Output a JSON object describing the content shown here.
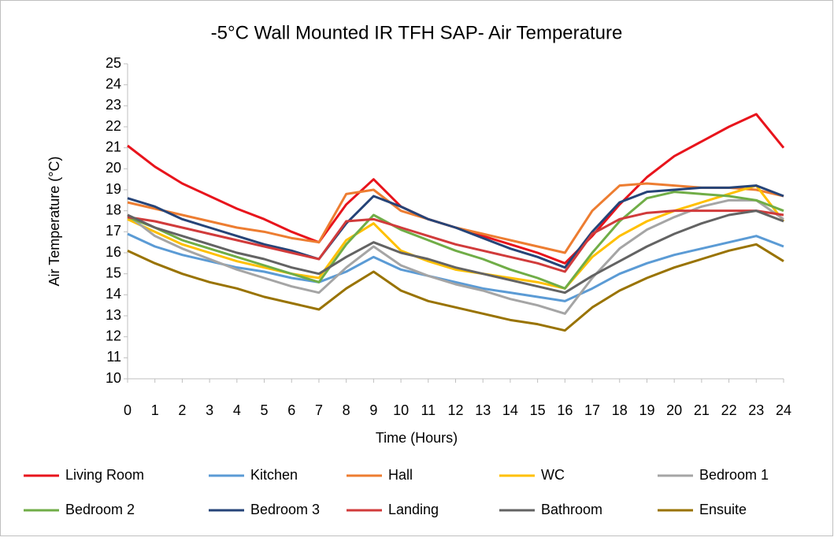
{
  "chart_data": {
    "type": "line",
    "title": "-5°C Wall Mounted IR TFH SAP- Air Temperature",
    "x_label": "Time (Hours)",
    "y_label": "Air Temperature (°C)",
    "x": [
      0,
      1,
      2,
      3,
      4,
      5,
      6,
      7,
      8,
      9,
      10,
      11,
      12,
      13,
      14,
      15,
      16,
      17,
      18,
      19,
      20,
      21,
      22,
      23,
      24
    ],
    "xlim": [
      0,
      24
    ],
    "xticks": [
      0,
      1,
      2,
      3,
      4,
      5,
      6,
      7,
      8,
      9,
      10,
      11,
      12,
      13,
      14,
      15,
      16,
      17,
      18,
      19,
      20,
      21,
      22,
      23,
      24
    ],
    "ylim": [
      10,
      25
    ],
    "yticks": [
      10,
      11,
      12,
      13,
      14,
      15,
      16,
      17,
      18,
      19,
      20,
      21,
      22,
      23,
      24,
      25
    ],
    "grid": false,
    "legend": "bottom",
    "series": [
      {
        "name": "Living Room",
        "color": "#e8141c",
        "values": [
          21.1,
          20.1,
          19.3,
          18.7,
          18.1,
          17.6,
          17.0,
          16.5,
          18.3,
          19.5,
          18.2,
          17.6,
          17.2,
          16.8,
          16.4,
          16.0,
          15.5,
          16.8,
          18.3,
          19.6,
          20.6,
          21.3,
          22.0,
          22.6,
          21.0
        ]
      },
      {
        "name": "Kitchen",
        "color": "#5b9bd5",
        "values": [
          16.9,
          16.3,
          15.9,
          15.6,
          15.3,
          15.1,
          14.8,
          14.6,
          15.1,
          15.8,
          15.2,
          14.9,
          14.6,
          14.3,
          14.1,
          13.9,
          13.7,
          14.3,
          15.0,
          15.5,
          15.9,
          16.2,
          16.5,
          16.8,
          16.3
        ]
      },
      {
        "name": "Hall",
        "color": "#ed7d31",
        "values": [
          18.4,
          18.1,
          17.8,
          17.5,
          17.2,
          17.0,
          16.7,
          16.5,
          18.8,
          19.0,
          18.0,
          17.6,
          17.2,
          16.9,
          16.6,
          16.3,
          16.0,
          18.0,
          19.2,
          19.3,
          19.2,
          19.1,
          19.1,
          19.0,
          18.7
        ]
      },
      {
        "name": "WC",
        "color": "#ffc000",
        "values": [
          17.6,
          17.0,
          16.4,
          16.0,
          15.6,
          15.3,
          15.0,
          14.8,
          16.6,
          17.4,
          16.1,
          15.6,
          15.2,
          15.0,
          14.8,
          14.6,
          14.3,
          15.8,
          16.8,
          17.5,
          18.0,
          18.4,
          18.8,
          19.2,
          17.5
        ]
      },
      {
        "name": "Bedroom 1",
        "color": "#a5a5a5",
        "values": [
          17.8,
          16.8,
          16.2,
          15.7,
          15.2,
          14.8,
          14.4,
          14.1,
          15.3,
          16.3,
          15.4,
          14.9,
          14.5,
          14.2,
          13.8,
          13.5,
          13.1,
          14.8,
          16.2,
          17.1,
          17.7,
          18.2,
          18.5,
          18.5,
          17.6
        ]
      },
      {
        "name": "Bedroom 2",
        "color": "#70ad47",
        "values": [
          17.7,
          17.2,
          16.6,
          16.2,
          15.8,
          15.4,
          15.0,
          14.6,
          16.4,
          17.8,
          17.1,
          16.6,
          16.1,
          15.7,
          15.2,
          14.8,
          14.3,
          16.0,
          17.5,
          18.6,
          18.9,
          18.8,
          18.7,
          18.5,
          18.0
        ]
      },
      {
        "name": "Bedroom 3",
        "color": "#264478",
        "values": [
          18.6,
          18.2,
          17.6,
          17.2,
          16.8,
          16.4,
          16.1,
          15.7,
          17.4,
          18.7,
          18.2,
          17.6,
          17.2,
          16.7,
          16.2,
          15.8,
          15.3,
          17.0,
          18.4,
          18.9,
          19.0,
          19.1,
          19.1,
          19.2,
          18.7
        ]
      },
      {
        "name": "Landing",
        "color": "#d13b3b",
        "values": [
          17.7,
          17.5,
          17.2,
          16.9,
          16.6,
          16.3,
          16.0,
          15.7,
          17.5,
          17.6,
          17.2,
          16.8,
          16.4,
          16.1,
          15.8,
          15.5,
          15.1,
          16.9,
          17.6,
          17.9,
          18.0,
          18.0,
          18.0,
          18.0,
          17.8
        ]
      },
      {
        "name": "Bathroom",
        "color": "#636363",
        "values": [
          17.8,
          17.2,
          16.8,
          16.4,
          16.0,
          15.7,
          15.3,
          15.0,
          15.8,
          16.5,
          16.0,
          15.7,
          15.3,
          15.0,
          14.7,
          14.4,
          14.1,
          14.9,
          15.6,
          16.3,
          16.9,
          17.4,
          17.8,
          18.0,
          17.5
        ]
      },
      {
        "name": "Ensuite",
        "color": "#997300",
        "values": [
          16.1,
          15.5,
          15.0,
          14.6,
          14.3,
          13.9,
          13.6,
          13.3,
          14.3,
          15.1,
          14.2,
          13.7,
          13.4,
          13.1,
          12.8,
          12.6,
          12.3,
          13.4,
          14.2,
          14.8,
          15.3,
          15.7,
          16.1,
          16.4,
          15.6
        ]
      }
    ]
  }
}
